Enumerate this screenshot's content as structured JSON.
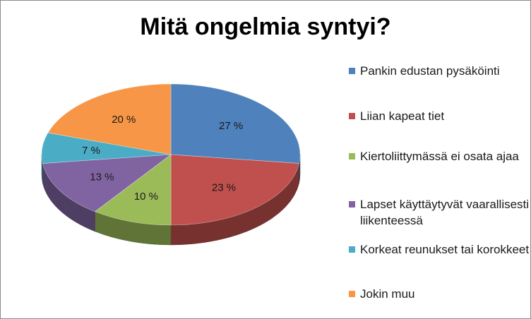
{
  "chart_data": {
    "type": "pie",
    "title": "Mitä ongelmia syntyi?",
    "legend_position": "right",
    "style": "3d",
    "categories": [
      "Pankin edustan pysäköinti",
      "Liian kapeat tiet",
      "Kiertoliittymässä ei osata ajaa",
      "Lapset käyttäytyvät vaarallisesti liikenteessä",
      "Korkeat reunukset tai korokkeet",
      "Jokin muu"
    ],
    "values": [
      27,
      23,
      10,
      13,
      7,
      20
    ],
    "labels": [
      "27 %",
      "23 %",
      "10 %",
      "13 %",
      "7 %",
      "20 %"
    ],
    "colors": [
      "#4f81bd",
      "#c0504d",
      "#9bbb59",
      "#8064a2",
      "#4bacc6",
      "#f79646"
    ]
  }
}
